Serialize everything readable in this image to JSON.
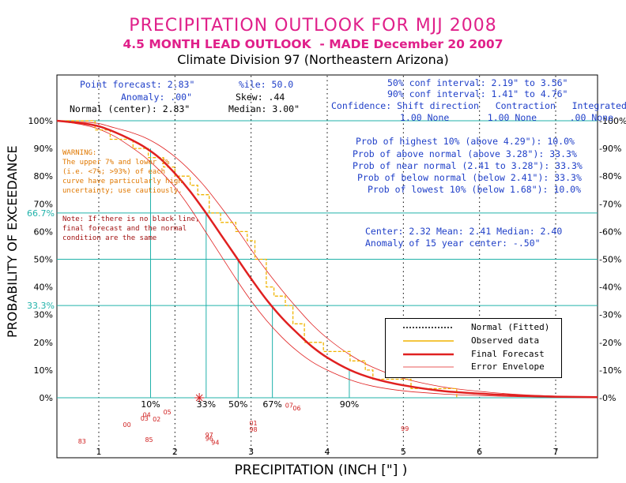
{
  "header": {
    "title": "PRECIPITATION OUTLOOK FOR MJJ 2008",
    "subtitle": "4.5 MONTH LEAD OUTLOOK  - MADE December 20 2007",
    "division": "Climate Division 97 (Northeastern Arizona)"
  },
  "stats": {
    "point_forecast": "Point forecast: 2.83\"",
    "anomaly": "Anomaly: .00\"",
    "normal_center": "Normal (center): 2.83\"",
    "pctile": "%ile: 50.0",
    "skew": "Skew: .44",
    "median": "Median: 3.00\"",
    "conf50": "50% conf interval: 2.19\" to 3.56\"",
    "conf90": "90% conf interval: 1.41\" to 4.76\"",
    "confidence_header": "Confidence: Shift direction   Contraction   Integrated",
    "confidence_values": "1.00 None       1.00 None      .00 None"
  },
  "probabilities": {
    "highest10": "Prob of highest 10% (above 4.29\"): 10.0%",
    "above_normal": "Prob of above normal (above 3.28\"): 33.3%",
    "near_normal": "Prob of near normal (2.41 to 3.28\"): 33.3%",
    "below_normal": "Prob of below normal (below 2.41\"): 33.3%",
    "lowest10": "Prob of lowest 10% (below 1.68\"): 10.0%"
  },
  "center_info": {
    "line1": "Center: 2.32 Mean: 2.41 Median: 2.40",
    "line2": "Anomaly of 15 year center: -.50\""
  },
  "notes": {
    "warning": [
      "WARNING:",
      "The upper 7% and lower 7%",
      "(i.e. <7%; >93%) of each",
      "curve have particularly high",
      "uncertainty; use cautiously."
    ],
    "note": [
      "Note: If there is no black line,",
      "final forecast and the normal",
      "condition are the same"
    ]
  },
  "legend": {
    "normal": "Normal (Fitted)",
    "observed": "Observed data",
    "final": "Final Forecast",
    "envelope": "Error Envelope"
  },
  "colors": {
    "title": "#e0208a",
    "info": "#1f3fc8",
    "grid": "#20b2aa",
    "forecast": "#e02020",
    "envelope": "#e02020",
    "observed": "#f0b400",
    "marker_labels": "#d02020"
  },
  "chart_data": {
    "type": "line",
    "title": "PRECIPITATION OUTLOOK FOR MJJ 2008",
    "xlabel": "PRECIPITATION (INCH [\"] )",
    "ylabel": "PROBABILITY OF EXCEEDANCE",
    "xlim": [
      0.45,
      7.55
    ],
    "ylim": [
      0,
      100
    ],
    "x_ticks": [
      1,
      2,
      3,
      4,
      5,
      6,
      7
    ],
    "y_ticks_left": [
      "0%",
      "10%",
      "20%",
      "30%",
      "40%",
      "50%",
      "60%",
      "70%",
      "80%",
      "90%",
      "100%"
    ],
    "y_ticks_right": [
      "-0%",
      "-10%",
      "-20%",
      "-30%",
      "-40%",
      "-50%",
      "-60%",
      "-70%",
      "-80%",
      "-90%",
      "-100%"
    ],
    "special_y_labels": [
      {
        "text": "66.7%",
        "value": 66.7
      },
      {
        "text": "33.3%",
        "value": 33.3
      }
    ],
    "percentile_lines": [
      {
        "label": "10%",
        "x": 1.68,
        "y": 90
      },
      {
        "label": "33%",
        "x": 2.41,
        "y": 66.7
      },
      {
        "label": "50%",
        "x": 2.83,
        "y": 50
      },
      {
        "label": "67%",
        "x": 3.28,
        "y": 33.3
      },
      {
        "label": "90%",
        "x": 4.29,
        "y": 10
      }
    ],
    "series": [
      {
        "name": "Final Forecast",
        "style": "thick-red",
        "x": [
          0.45,
          0.8,
          1.0,
          1.2,
          1.4,
          1.6,
          1.8,
          2.0,
          2.2,
          2.4,
          2.6,
          2.8,
          3.0,
          3.2,
          3.4,
          3.6,
          3.8,
          4.0,
          4.3,
          4.6,
          5.0,
          5.5,
          6.0,
          6.5,
          7.0,
          7.55
        ],
        "y": [
          100,
          99,
          98,
          96,
          93.5,
          90.5,
          86.5,
          81,
          74.5,
          67,
          59,
          51,
          43,
          35.5,
          29,
          23.5,
          18.5,
          14.5,
          10,
          7,
          4.5,
          2.5,
          1.5,
          0.8,
          0.4,
          0.2
        ]
      },
      {
        "name": "Error Envelope (upper)",
        "style": "thin-red",
        "x": [
          0.45,
          0.8,
          1.0,
          1.2,
          1.4,
          1.6,
          1.8,
          2.0,
          2.2,
          2.4,
          2.6,
          2.8,
          3.0,
          3.2,
          3.4,
          3.6,
          3.8,
          4.0,
          4.3,
          4.6,
          5.0,
          5.5,
          6.0,
          6.5,
          7.0,
          7.55
        ],
        "y": [
          100,
          99.5,
          99,
          97.5,
          96,
          94,
          91,
          87,
          82,
          76,
          69,
          61.5,
          53.5,
          46,
          39,
          32.5,
          26.5,
          21.5,
          15.5,
          11,
          7,
          4,
          2.3,
          1.2,
          0.6,
          0.3
        ]
      },
      {
        "name": "Error Envelope (lower)",
        "style": "thin-red",
        "x": [
          0.45,
          0.8,
          1.0,
          1.2,
          1.4,
          1.6,
          1.8,
          2.0,
          2.2,
          2.4,
          2.6,
          2.8,
          3.0,
          3.2,
          3.4,
          3.6,
          3.8,
          4.0,
          4.3,
          4.6,
          5.0,
          5.5,
          6.0,
          6.5,
          7.0,
          7.55
        ],
        "y": [
          100,
          98.5,
          97,
          94.5,
          91,
          87,
          82,
          76,
          68.5,
          60,
          51.5,
          43,
          35,
          28,
          22,
          17,
          13,
          10,
          6.5,
          4.2,
          2.5,
          1.4,
          0.8,
          0.4,
          0.2,
          0.1
        ]
      },
      {
        "name": "Observed data",
        "style": "step-dashed",
        "x": [
          0.45,
          0.95,
          1.15,
          1.45,
          1.65,
          1.85,
          2.0,
          2.2,
          2.3,
          2.45,
          2.6,
          2.8,
          2.95,
          3.05,
          3.2,
          3.3,
          3.45,
          3.55,
          3.7,
          3.95,
          4.3,
          4.5,
          4.6,
          5.1,
          5.7
        ],
        "y": [
          100,
          96.7,
          93.3,
          90,
          86.7,
          83.3,
          80,
          76.7,
          73.3,
          66.7,
          63.3,
          60,
          56.7,
          50,
          40,
          36.7,
          33.3,
          26.7,
          20,
          16.7,
          13.3,
          10,
          6.7,
          3.3,
          0
        ]
      }
    ],
    "year_markers": [
      {
        "label": "83",
        "x": 0.78,
        "y": -16.5
      },
      {
        "label": "00",
        "x": 1.37,
        "y": -10.5
      },
      {
        "label": "04",
        "x": 1.63,
        "y": -7
      },
      {
        "label": "03",
        "x": 1.6,
        "y": -8.3
      },
      {
        "label": "02",
        "x": 1.76,
        "y": -8.5
      },
      {
        "label": "05",
        "x": 1.9,
        "y": -6
      },
      {
        "label": "85",
        "x": 1.66,
        "y": -16
      },
      {
        "label": "97",
        "x": 2.45,
        "y": -14.3
      },
      {
        "label": "96",
        "x": 2.45,
        "y": -15.5
      },
      {
        "label": "94",
        "x": 2.53,
        "y": -17
      },
      {
        "label": "01",
        "x": 3.03,
        "y": -10
      },
      {
        "label": "98",
        "x": 3.03,
        "y": -12.3
      },
      {
        "label": "07",
        "x": 3.5,
        "y": -3.6
      },
      {
        "label": "06",
        "x": 3.6,
        "y": -4.6
      },
      {
        "label": "99",
        "x": 5.02,
        "y": -12
      }
    ],
    "forecast_marker": {
      "x": 2.32,
      "y": 0
    }
  }
}
